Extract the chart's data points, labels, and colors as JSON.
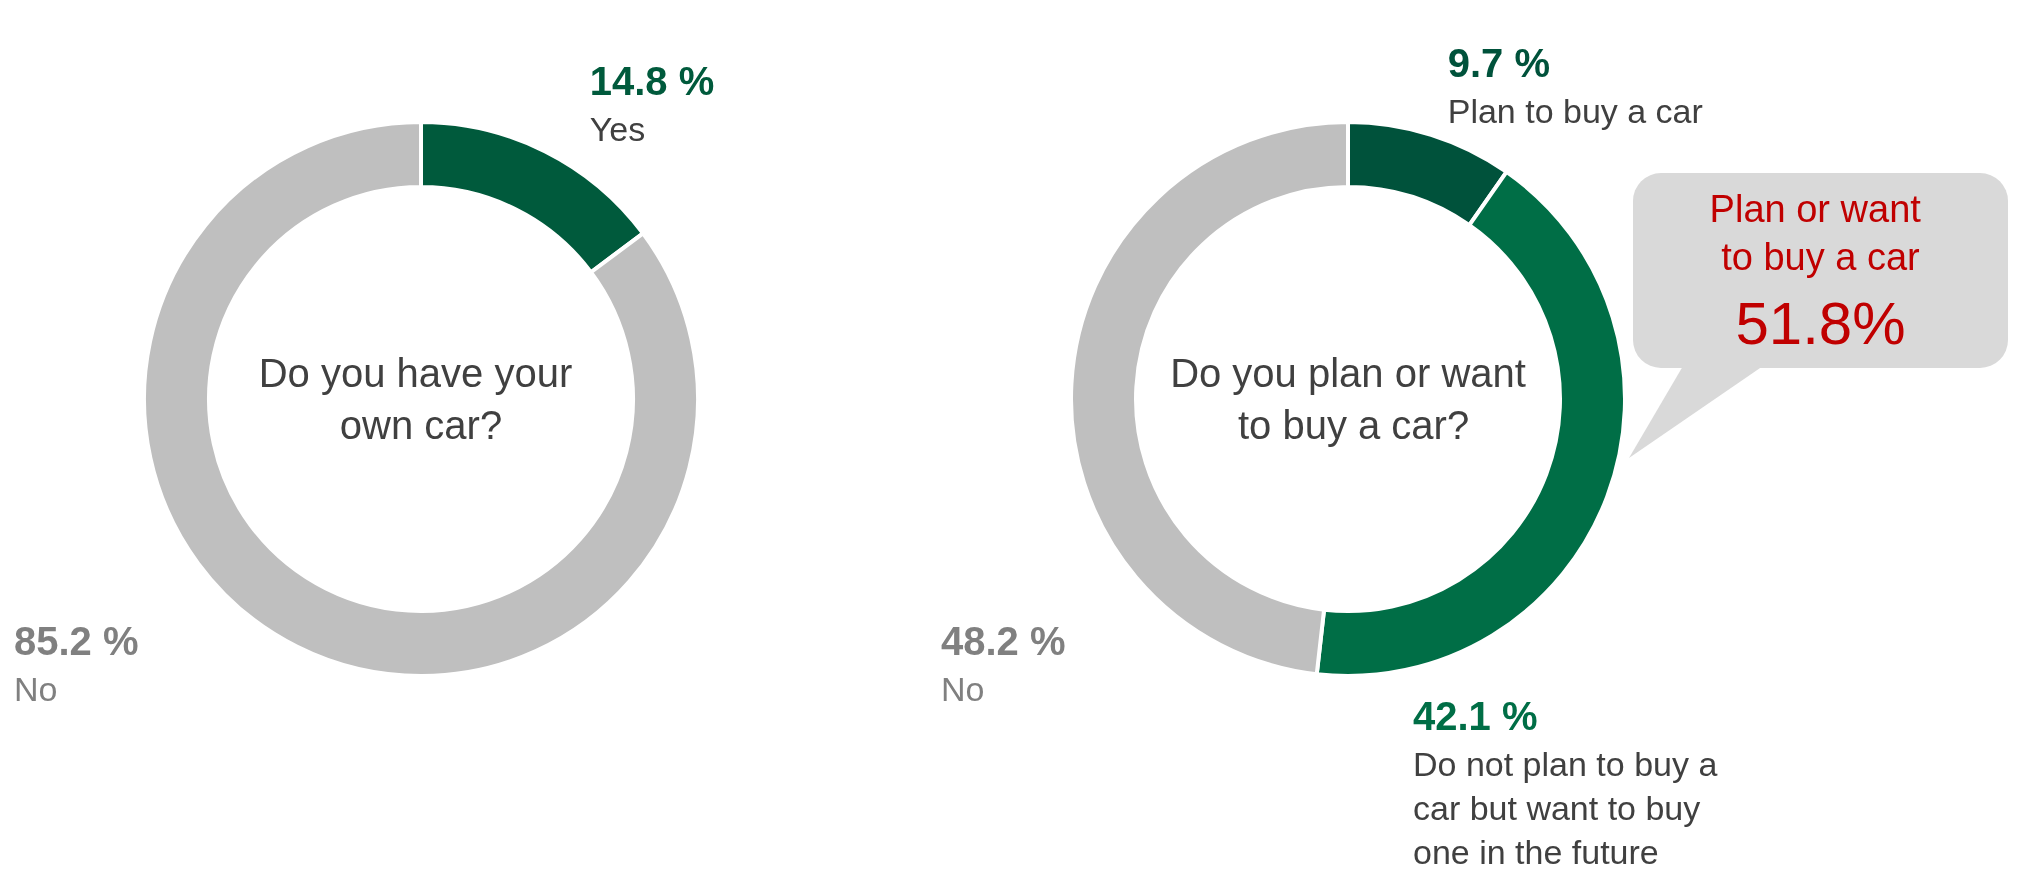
{
  "chart_data": [
    {
      "type": "donut",
      "title": "Do you have your own car?",
      "categories": [
        "Yes",
        "No"
      ],
      "values": [
        14.8,
        85.2
      ],
      "colors": [
        "#005a3c",
        "#bfbfbf"
      ],
      "value_labels": [
        "14.8 %",
        "85.2 %"
      ],
      "legend": false
    },
    {
      "type": "donut",
      "title": "Do you plan or want to buy a car?",
      "categories": [
        "Plan to buy a car",
        "Do not plan to buy a car but want to buy one in the future",
        "No"
      ],
      "values": [
        9.7,
        42.1,
        48.2
      ],
      "colors": [
        "#00523b",
        "#006e46",
        "#bfbfbf"
      ],
      "value_labels": [
        "9.7 %",
        "42.1 %",
        "48.2 %"
      ],
      "legend": false,
      "annotations": [
        "Plan or want to buy a car",
        "51.8%"
      ]
    }
  ]
}
